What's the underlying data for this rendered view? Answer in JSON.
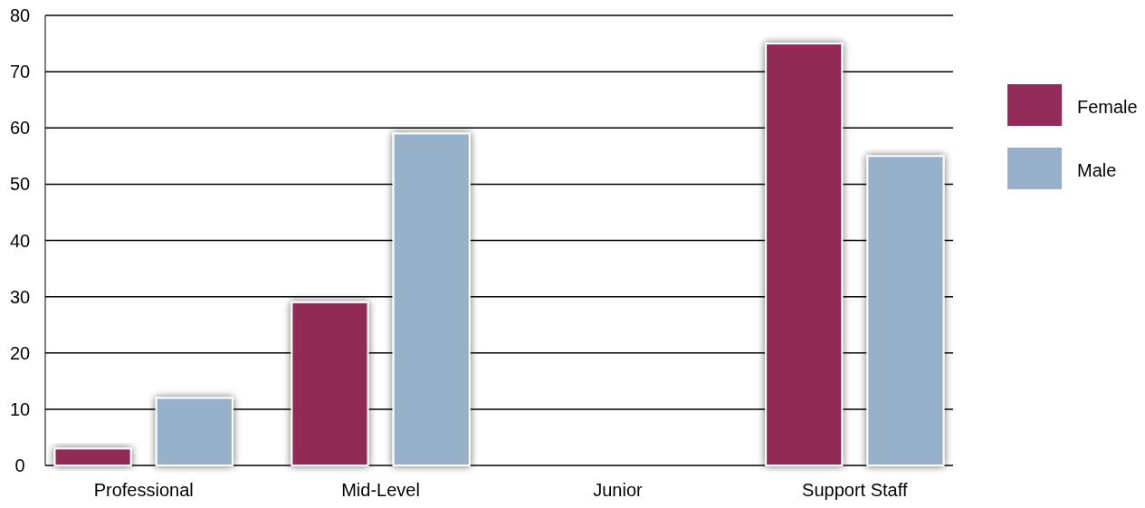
{
  "chart_data": {
    "type": "bar",
    "categories": [
      "Professional",
      "Mid-Level",
      "Junior",
      "Support Staff"
    ],
    "series": [
      {
        "name": "Female",
        "color": "#922b57",
        "values": [
          3,
          29,
          null,
          75
        ]
      },
      {
        "name": "Male",
        "color": "#98b1cb",
        "values": [
          12,
          59,
          null,
          55
        ]
      }
    ],
    "ylim": [
      0,
      80
    ],
    "yticks": [
      0,
      10,
      20,
      30,
      40,
      50,
      60,
      70,
      80
    ],
    "grid": "y",
    "legend": "right"
  }
}
